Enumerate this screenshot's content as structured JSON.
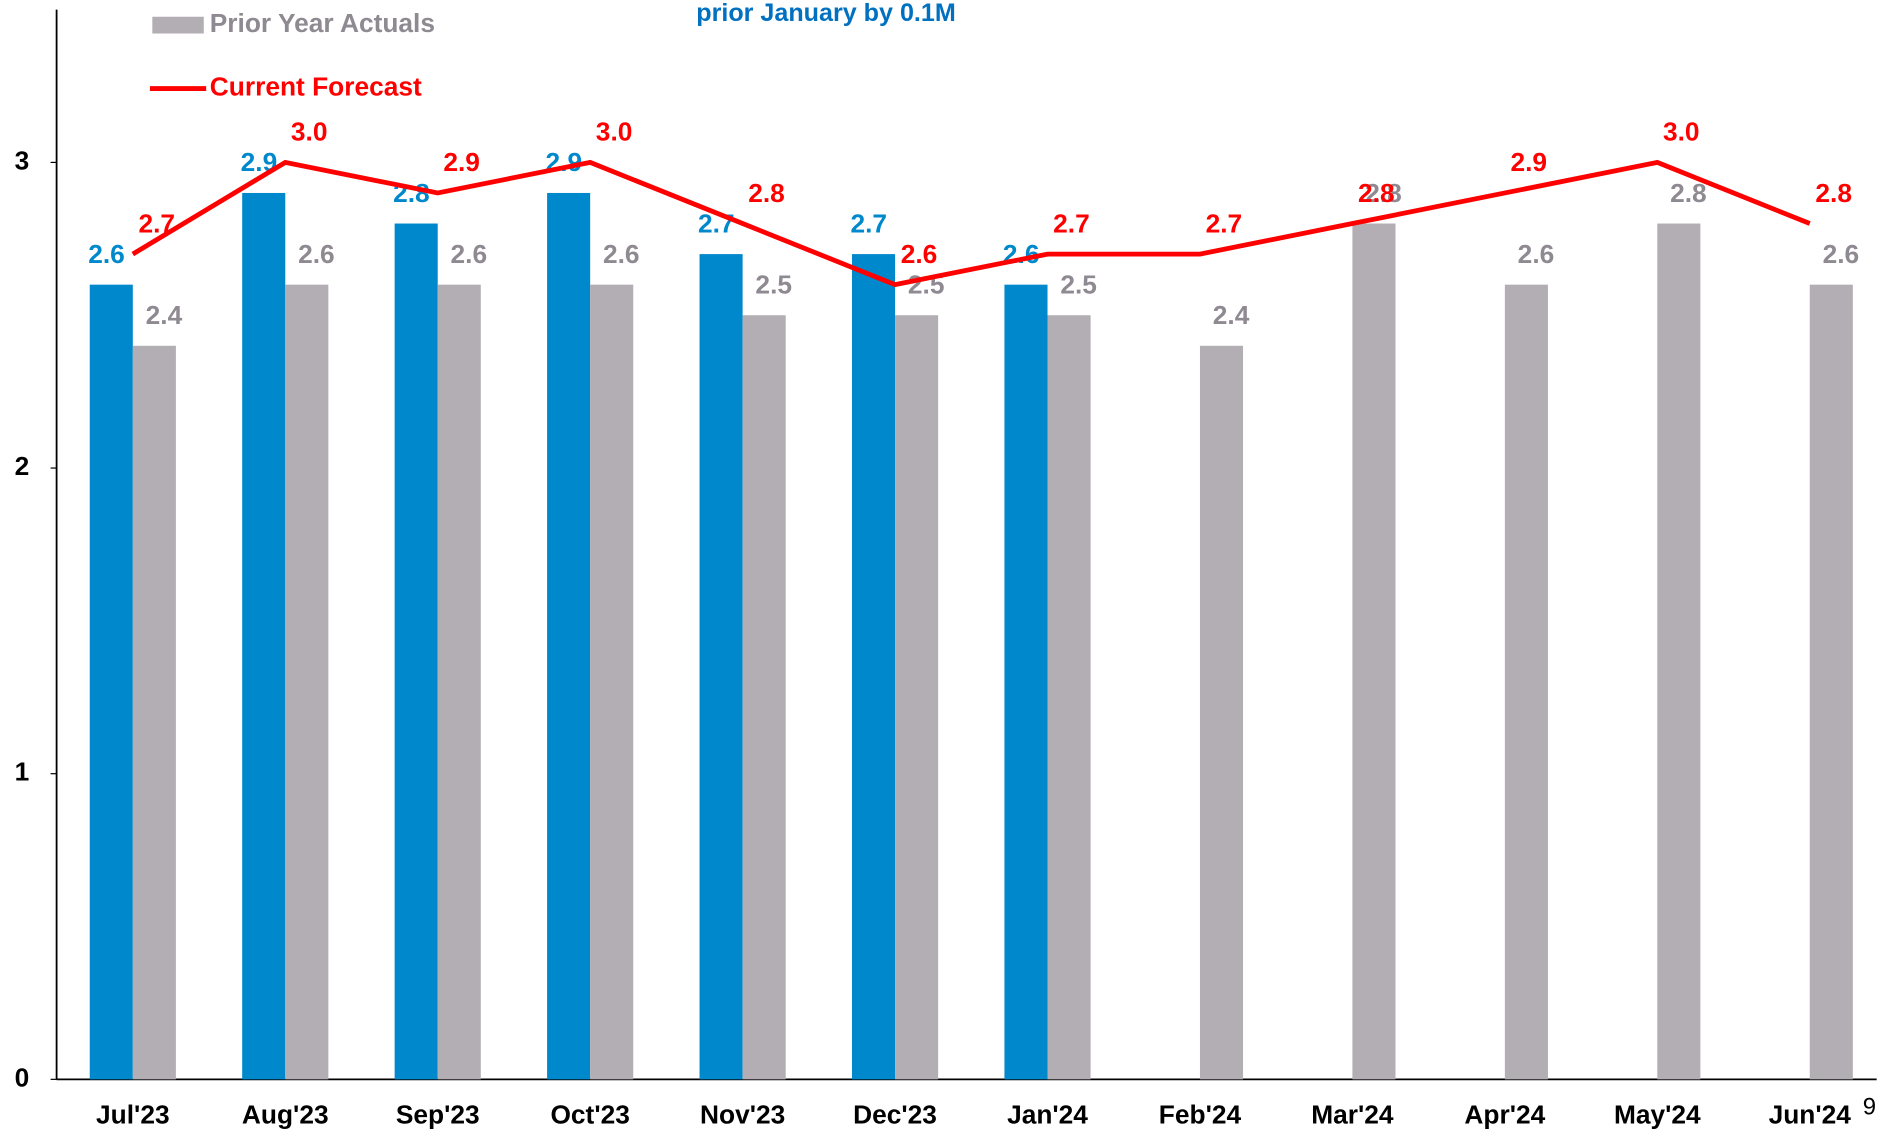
{
  "chart_data": {
    "type": "bar_line",
    "annotation": "prior January by 0.1M",
    "page_number": "9",
    "categories": [
      "Jul'23",
      "Aug'23",
      "Sep'23",
      "Oct'23",
      "Nov'23",
      "Dec'23",
      "Jan'24",
      "Feb'24",
      "Mar'24",
      "Apr'24",
      "May'24",
      "Jun'24"
    ],
    "series": [
      {
        "color": "#0088cc",
        "kind": "bar",
        "values": [
          2.6,
          2.9,
          2.8,
          2.9,
          2.7,
          2.7,
          2.6,
          null,
          null,
          null,
          null,
          null
        ]
      },
      {
        "name": "Prior Year Actuals",
        "color": "#b3aeb3",
        "label_color": "#8f8a92",
        "kind": "bar",
        "values": [
          2.4,
          2.6,
          2.6,
          2.6,
          2.5,
          2.5,
          2.5,
          2.4,
          2.8,
          2.6,
          2.8,
          2.6
        ]
      },
      {
        "name": "Current Forecast",
        "color": "#ff0000",
        "kind": "line",
        "values": [
          2.7,
          3,
          2.9,
          3,
          2.8,
          2.6,
          2.7,
          2.7,
          2.8,
          2.9,
          3,
          2.8
        ],
        "value_labels": [
          "2.7",
          "3.0",
          "2.9",
          "3.0",
          "2.8",
          "2.6",
          "2.7",
          "2.7",
          "2.8",
          "2.9",
          "3.0",
          "2.8"
        ]
      }
    ],
    "ylim": [
      0,
      3.5
    ],
    "yticks": [
      0,
      1,
      2,
      3
    ],
    "grid": false
  }
}
